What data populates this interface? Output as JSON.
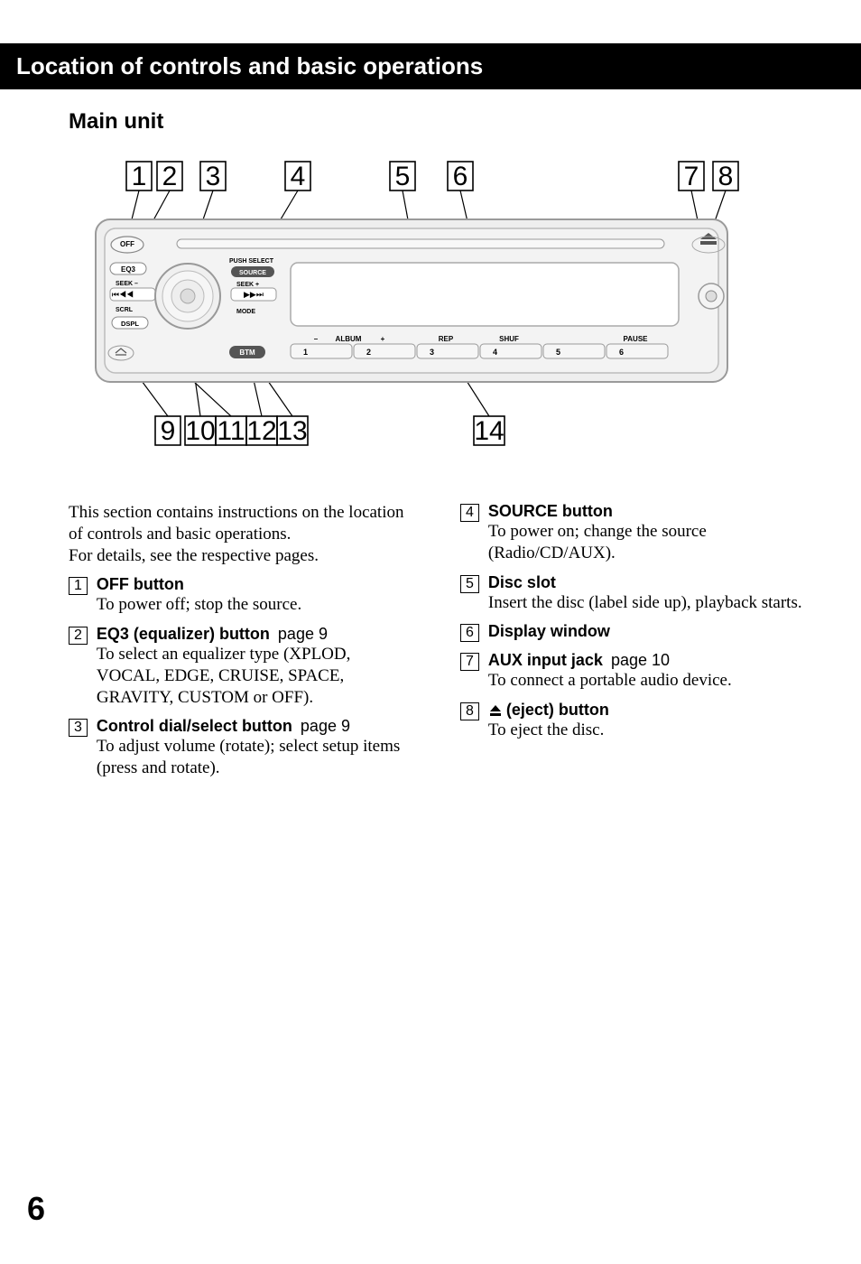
{
  "header": "Location of controls and basic operations",
  "section_title": "Main unit",
  "intro_line1": "This section contains instructions on the location of controls and basic operations.",
  "intro_line2": "For details, see the respective pages.",
  "page_number": "6",
  "diagram": {
    "top_callouts": [
      "1",
      "2",
      "3",
      "4",
      "5",
      "6",
      "7",
      "8"
    ],
    "bottom_callouts": [
      "9",
      "10",
      "11",
      "12",
      "13",
      "14"
    ],
    "callout_font_family": "Arial, Helvetica, sans-serif",
    "callout_font_size": 30,
    "panel_labels": {
      "off": "OFF",
      "eq3": "EQ3",
      "seek_minus": "SEEK",
      "seek_plus": "SEEK",
      "push_select": "PUSH SELECT",
      "source": "SOURCE",
      "scrl": "SCRL",
      "dspl": "DSPL",
      "mode": "MODE",
      "btm": "BTM",
      "album_minus": "–",
      "album": "ALBUM",
      "album_plus": "+",
      "rep": "REP",
      "shuf": "SHUF",
      "pause": "PAUSE",
      "nums": [
        "1",
        "2",
        "3",
        "4",
        "5",
        "6"
      ]
    },
    "colors": {
      "panel_bg": "#e6e6e6",
      "panel_stroke": "#9a9a9a",
      "dark_stroke": "#555555",
      "text": "#000000",
      "line": "#000000"
    }
  },
  "left_items": [
    {
      "num": "1",
      "title": "OFF button",
      "desc": "To power off; stop the source."
    },
    {
      "num": "2",
      "title": "EQ3 (equalizer) button",
      "page": "page 9",
      "desc": "To select an equalizer type (XPLOD, VOCAL, EDGE, CRUISE, SPACE, GRAVITY, CUSTOM or OFF)."
    },
    {
      "num": "3",
      "title": "Control dial/select button",
      "page": "page 9",
      "desc": "To adjust volume (rotate); select setup items (press and rotate)."
    }
  ],
  "right_items": [
    {
      "num": "4",
      "title": "SOURCE button",
      "desc": "To power on; change the source (Radio/CD/AUX)."
    },
    {
      "num": "5",
      "title": "Disc slot",
      "desc": "Insert the disc (label side up), playback starts."
    },
    {
      "num": "6",
      "title": "Display window",
      "desc": ""
    },
    {
      "num": "7",
      "title": "AUX input jack",
      "page": "page 10",
      "desc": "To connect a portable audio device."
    },
    {
      "num": "8",
      "title": "(eject) button",
      "eject_icon": true,
      "desc": "To eject the disc."
    }
  ]
}
